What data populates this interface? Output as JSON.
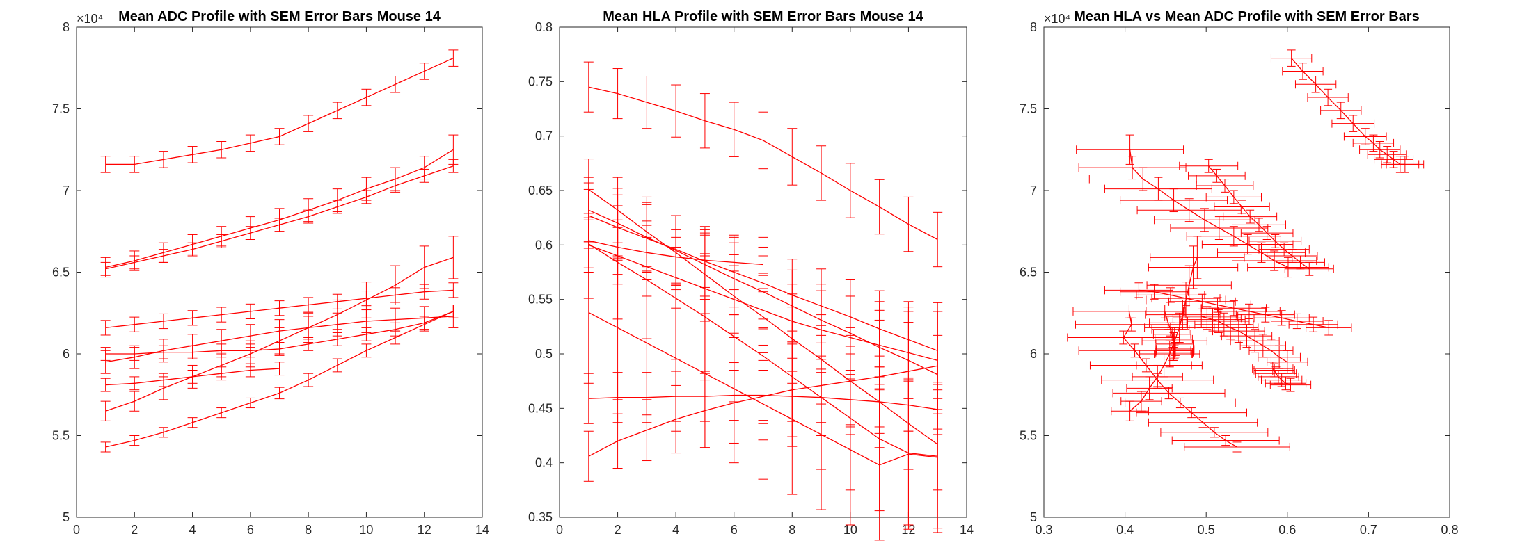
{
  "figure": {
    "background": "#ffffff",
    "series_color": "#ff0000",
    "axis_color": "#262626"
  },
  "chart_data": [
    {
      "type": "line",
      "title": "Mean ADC Profile with SEM Error Bars Mouse 14",
      "xlabel": "",
      "ylabel": "",
      "xlim": [
        0,
        14
      ],
      "ylim": [
        50000,
        80000
      ],
      "xticks": [
        0,
        2,
        4,
        6,
        8,
        10,
        12,
        14
      ],
      "yticks": [
        50000,
        55000,
        60000,
        65000,
        70000,
        75000,
        80000
      ],
      "ytick_labels": [
        "5",
        "5.5",
        "6",
        "6.5",
        "7",
        "7.5",
        "8"
      ],
      "xtick_labels": [
        "0",
        "2",
        "4",
        "6",
        "8",
        "10",
        "12",
        "14"
      ],
      "y_exponent": "×10⁴",
      "grid": false,
      "error_bars": "vertical",
      "x": [
        1,
        2,
        3,
        4,
        5,
        6,
        7,
        8,
        9,
        10,
        11,
        12,
        13
      ],
      "series": [
        {
          "values": [
            71600,
            71600,
            71900,
            72200,
            72500,
            72900,
            73300,
            74100,
            74900,
            75700,
            76500,
            77300,
            78100
          ],
          "err": [
            500,
            500,
            500,
            500,
            500,
            500,
            500,
            500,
            500,
            500,
            500,
            500,
            500
          ]
        },
        {
          "values": [
            65300,
            65700,
            66200,
            66700,
            67200,
            67700,
            68200,
            68800,
            69400,
            70100,
            70700,
            71400,
            72500
          ],
          "err": [
            600,
            600,
            600,
            600,
            600,
            700,
            700,
            700,
            700,
            700,
            700,
            700,
            900
          ]
        },
        {
          "values": [
            65200,
            65600,
            66000,
            66400,
            66900,
            67400,
            67900,
            68400,
            69000,
            69600,
            70300,
            70900,
            71500
          ],
          "err": [
            400,
            400,
            400,
            400,
            400,
            400,
            400,
            400,
            400,
            400,
            400,
            400,
            400
          ]
        },
        {
          "values": [
            61600,
            61800,
            62000,
            62200,
            62400,
            62600,
            62800,
            63000,
            63200,
            63400,
            63600,
            63800,
            63900
          ],
          "err": [
            450,
            450,
            450,
            450,
            450,
            450,
            450,
            450,
            450,
            450,
            450,
            450,
            450
          ]
        },
        {
          "values": [
            56500,
            57100,
            57900,
            58600,
            59300,
            60000,
            60800,
            61600,
            62400,
            63300,
            64200,
            65300,
            65900
          ],
          "err": [
            600,
            600,
            700,
            700,
            700,
            800,
            800,
            900,
            900,
            1100,
            1200,
            1300,
            1300
          ]
        },
        {
          "values": [
            60000,
            60000,
            60100,
            60100,
            60200,
            60200,
            60300,
            60600,
            60900,
            61200,
            61500,
            61900,
            62600
          ],
          "err": [
            400,
            400,
            400,
            400,
            400,
            400,
            400,
            400,
            400,
            400,
            400,
            400,
            400
          ]
        },
        {
          "values": [
            59500,
            59800,
            60200,
            60500,
            60800,
            61100,
            61400,
            61600,
            61800,
            62000,
            62100,
            62200,
            62300
          ],
          "err": [
            700,
            700,
            700,
            700,
            700,
            700,
            700,
            700,
            700,
            700,
            700,
            700,
            700
          ]
        },
        {
          "values": [
            58100,
            58200,
            58400,
            58600,
            58800,
            59000,
            59100,
            null,
            null,
            null,
            null,
            null,
            null
          ],
          "err": [
            400,
            400,
            400,
            400,
            400,
            400,
            400,
            null,
            null,
            null,
            null,
            null,
            null
          ]
        },
        {
          "values": [
            54300,
            54700,
            55200,
            55800,
            56400,
            57000,
            57600,
            58400,
            59300,
            60200,
            61000,
            61800,
            62600
          ],
          "err": [
            300,
            300,
            300,
            300,
            300,
            300,
            350,
            400,
            400,
            400,
            400,
            400,
            400
          ]
        }
      ]
    },
    {
      "type": "line",
      "title": "Mean HLA Profile with SEM Error Bars Mouse 14",
      "xlabel": "",
      "ylabel": "",
      "xlim": [
        0,
        14
      ],
      "ylim": [
        0.35,
        0.8
      ],
      "xticks": [
        0,
        2,
        4,
        6,
        8,
        10,
        12,
        14
      ],
      "yticks": [
        0.35,
        0.4,
        0.45,
        0.5,
        0.55,
        0.6,
        0.65,
        0.7,
        0.75,
        0.8
      ],
      "ytick_labels": [
        "0.35",
        "0.4",
        "0.45",
        "0.5",
        "0.55",
        "0.6",
        "0.65",
        "0.7",
        "0.75",
        "0.8"
      ],
      "xtick_labels": [
        "0",
        "2",
        "4",
        "6",
        "8",
        "10",
        "12",
        "14"
      ],
      "grid": false,
      "error_bars": "vertical",
      "x": [
        1,
        2,
        3,
        4,
        5,
        6,
        7,
        8,
        9,
        10,
        11,
        12,
        13
      ],
      "series": [
        {
          "values": [
            0.745,
            0.739,
            0.731,
            0.723,
            0.714,
            0.706,
            0.696,
            0.681,
            0.666,
            0.65,
            0.635,
            0.619,
            0.605
          ],
          "err": [
            0.023,
            0.023,
            0.024,
            0.024,
            0.025,
            0.025,
            0.026,
            0.026,
            0.025,
            0.025,
            0.025,
            0.025,
            0.025
          ]
        },
        {
          "values": [
            0.651,
            0.632,
            0.612,
            0.593,
            0.573,
            0.553,
            0.534,
            0.514,
            0.495,
            0.475,
            0.456,
            0.436,
            0.417
          ],
          "err": [
            0.028,
            0.03,
            0.032,
            0.034,
            0.036,
            0.038,
            0.04,
            0.041,
            0.041,
            0.042,
            0.042,
            0.042,
            0.042
          ]
        },
        {
          "values": [
            0.632,
            0.62,
            0.607,
            0.595,
            0.582,
            0.569,
            0.557,
            0.544,
            0.531,
            0.519,
            0.506,
            0.494,
            0.481
          ],
          "err": [
            0.03,
            0.032,
            0.032,
            0.032,
            0.032,
            0.033,
            0.033,
            0.033,
            0.033,
            0.034,
            0.034,
            0.035,
            0.036
          ]
        },
        {
          "values": [
            0.627,
            0.616,
            0.606,
            0.596,
            0.585,
            0.575,
            0.565,
            0.554,
            0.544,
            0.534,
            0.523,
            0.513,
            0.503
          ],
          "err": [
            0.03,
            0.03,
            0.031,
            0.031,
            0.032,
            0.032,
            0.033,
            0.033,
            0.034,
            0.034,
            0.035,
            0.035,
            0.036
          ]
        },
        {
          "values": [
            0.604,
            0.598,
            0.593,
            0.589,
            0.586,
            0.584,
            0.582,
            null,
            null,
            null,
            null,
            null,
            null
          ],
          "err": [
            0.025,
            0.025,
            0.025,
            0.025,
            0.025,
            0.025,
            0.025,
            null,
            null,
            null,
            null,
            null,
            null
          ]
        },
        {
          "values": [
            0.6,
            0.59,
            0.58,
            0.57,
            0.56,
            0.55,
            0.54,
            0.53,
            0.522,
            0.515,
            0.508,
            0.501,
            0.494
          ],
          "err": [
            0.025,
            0.026,
            0.027,
            0.028,
            0.03,
            0.031,
            0.032,
            0.034,
            0.036,
            0.038,
            0.04,
            0.042,
            0.045
          ]
        },
        {
          "values": [
            0.601,
            0.584,
            0.568,
            0.551,
            0.534,
            0.516,
            0.498,
            0.479,
            0.46,
            0.441,
            0.422,
            0.409,
            0.406
          ],
          "err": [
            0.05,
            0.052,
            0.054,
            0.056,
            0.058,
            0.06,
            0.062,
            0.064,
            0.066,
            0.066,
            0.066,
            0.066,
            0.066
          ]
        },
        {
          "values": [
            0.538,
            0.524,
            0.51,
            0.496,
            0.482,
            0.468,
            0.454,
            0.44,
            0.426,
            0.412,
            0.398,
            0.408,
            0.405
          ],
          "err": [
            0.065,
            0.066,
            0.066,
            0.067,
            0.068,
            0.068,
            0.069,
            0.069,
            0.069,
            0.069,
            0.069,
            0.069,
            0.069
          ]
        },
        {
          "values": [
            0.459,
            0.46,
            0.46,
            0.461,
            0.461,
            0.462,
            0.462,
            0.461,
            0.46,
            0.458,
            0.456,
            0.453,
            0.449
          ],
          "err": [
            0.023,
            0.023,
            0.023,
            0.023,
            0.023,
            0.023,
            0.023,
            0.023,
            0.023,
            0.023,
            0.023,
            0.023,
            0.023
          ]
        },
        {
          "values": [
            0.406,
            0.42,
            0.43,
            0.44,
            0.448,
            0.455,
            0.461,
            0.467,
            0.471,
            0.475,
            0.479,
            0.484,
            0.489
          ],
          "err": [
            0.023,
            0.025,
            0.028,
            0.031,
            0.034,
            0.037,
            0.04,
            0.043,
            0.046,
            0.049,
            0.052,
            0.055,
            0.058
          ]
        }
      ]
    },
    {
      "type": "scatter",
      "title": "Mean HLA vs Mean ADC Profile with SEM Error Bars",
      "xlabel": "",
      "ylabel": "",
      "xlim": [
        0.3,
        0.8
      ],
      "ylim": [
        50000,
        80000
      ],
      "xticks": [
        0.3,
        0.4,
        0.5,
        0.6,
        0.7,
        0.8
      ],
      "yticks": [
        50000,
        55000,
        60000,
        65000,
        70000,
        75000,
        80000
      ],
      "ytick_labels": [
        "5",
        "5.5",
        "6",
        "6.5",
        "7",
        "7.5",
        "8"
      ],
      "xtick_labels": [
        "0.3",
        "0.4",
        "0.5",
        "0.6",
        "0.7",
        "0.8"
      ],
      "y_exponent": "×10⁴",
      "grid": false,
      "error_bars": "both",
      "connected": true,
      "series_from_panels": true
    }
  ]
}
